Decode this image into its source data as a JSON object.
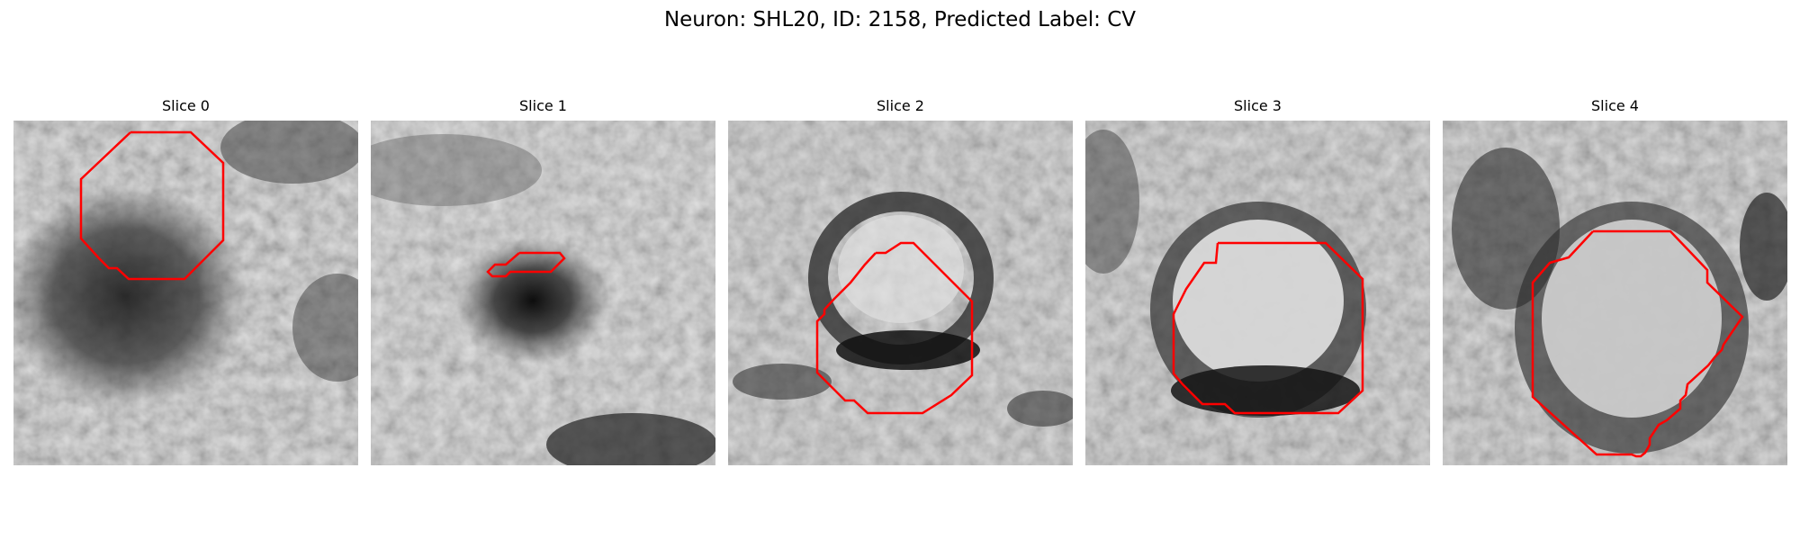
{
  "figure": {
    "title": "Neuron: SHL20, ID: 2158, Predicted Label: CV"
  },
  "slices": [
    {
      "title": "Slice 0"
    },
    {
      "title": "Slice 1"
    },
    {
      "title": "Slice 2"
    },
    {
      "title": "Slice 3"
    },
    {
      "title": "Slice 4"
    }
  ],
  "contour_color": "#ff0000"
}
